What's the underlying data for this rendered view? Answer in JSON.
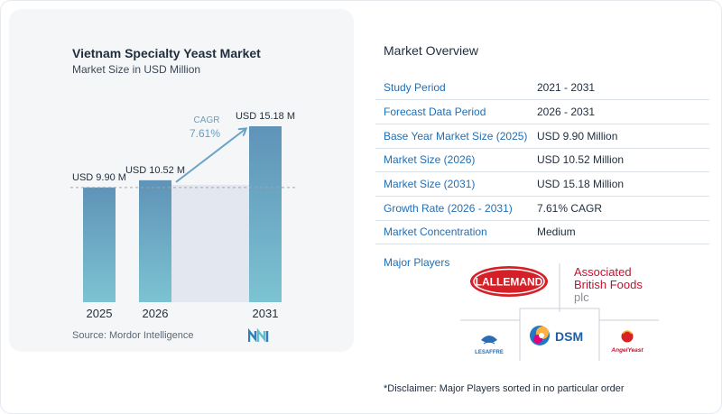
{
  "chart_data": {
    "type": "bar",
    "title": "Vietnam Specialty Yeast Market",
    "subtitle": "Market Size in USD Million",
    "categories": [
      "2025",
      "2026",
      "2031"
    ],
    "values": [
      9.9,
      10.52,
      15.18
    ],
    "value_labels": [
      "USD 9.90 M",
      "USD 10.52 M",
      "USD 15.18 M"
    ],
    "cagr_label": "CAGR",
    "cagr_value": "7.61%",
    "colors": {
      "bar_top": "#5f93b8",
      "bar_bottom": "#7cc3d2",
      "band": "#e3e8f0",
      "arrow": "#6aa3c6",
      "dashed": "#9aa5b1"
    }
  },
  "source": "Source:  Mordor Intelligence",
  "overview": {
    "title": "Market Overview",
    "rows": [
      {
        "label": "Study Period",
        "value": "2021 - 2031"
      },
      {
        "label": "Forecast Data Period",
        "value": "2026 - 2031"
      },
      {
        "label": "Base Year Market Size (2025)",
        "value": "USD 9.90 Million"
      },
      {
        "label": "Market Size (2026)",
        "value": "USD 10.52 Million"
      },
      {
        "label": "Market Size (2031)",
        "value": "USD 15.18 Million"
      },
      {
        "label": "Growth Rate (2026 - 2031)",
        "value": "7.61% CAGR"
      },
      {
        "label": "Market Concentration",
        "value": "Medium"
      }
    ],
    "players_label": "Major Players",
    "players": [
      "LALLEMAND",
      "Associated British Foods plc",
      "LESAFFRE",
      "DSM",
      "Angel Yeast"
    ],
    "logo_text": {
      "lallemand": "LALLEMAND",
      "abf_line1": "Associated",
      "abf_line2": "British Foods",
      "abf_line3": "plc",
      "lesaffre": "LESAFFRE",
      "dsm": "DSM",
      "angel": "AngelYeast"
    }
  },
  "disclaimer": "*Disclaimer: Major Players sorted in no particular order"
}
